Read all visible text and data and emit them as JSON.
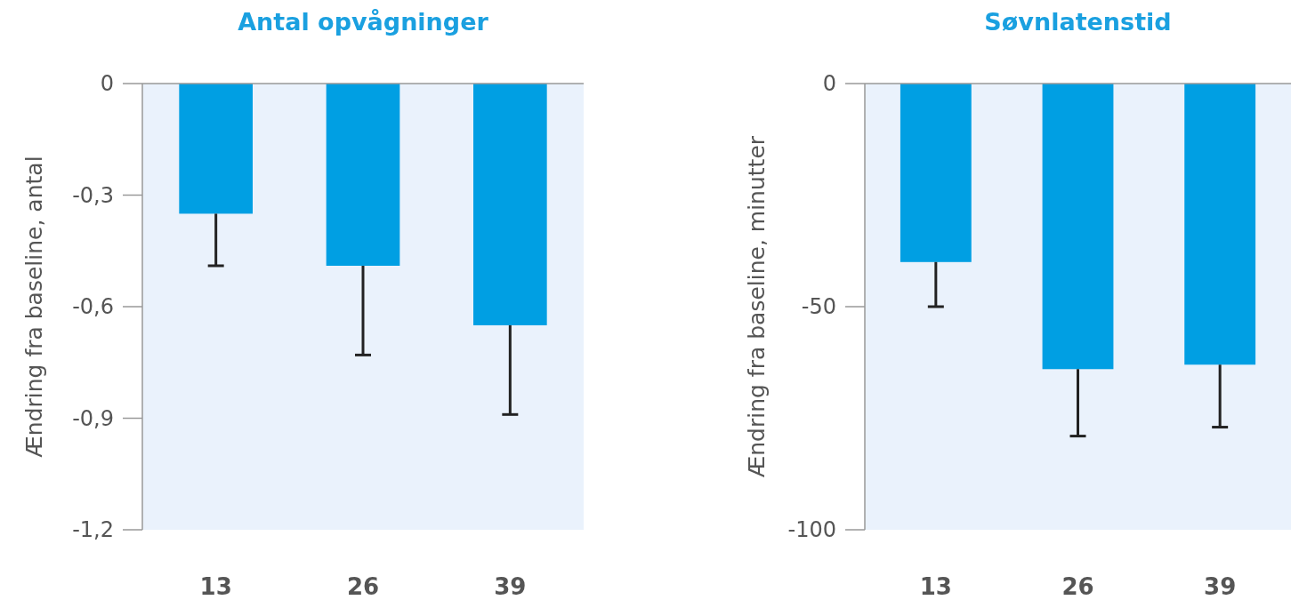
{
  "chart_data": [
    {
      "type": "bar",
      "title": "Antal opvågninger",
      "ylabel": "Ændring fra baseline, antal",
      "categories": [
        "13",
        "26",
        "39"
      ],
      "values": [
        -0.35,
        -0.49,
        -0.65
      ],
      "errors": [
        [
          -0.49,
          -0.35
        ],
        [
          -0.73,
          -0.49
        ],
        [
          -0.89,
          -0.65
        ]
      ],
      "color": "#009fe3",
      "ylim": [
        -1.2,
        0
      ],
      "yticks": [
        {
          "value": 0,
          "label": "0"
        },
        {
          "value": -0.3,
          "label": "-0,3"
        },
        {
          "value": -0.6,
          "label": "-0,6"
        },
        {
          "value": -0.9,
          "label": "-0,9"
        },
        {
          "value": -1.2,
          "label": "-1,2"
        }
      ],
      "grid": false
    },
    {
      "type": "bar",
      "title": "Søvnlatenstid",
      "ylabel": "Ændring fra baseline, minutter",
      "categories": [
        "13",
        "26",
        "39"
      ],
      "values": [
        -40,
        -64,
        -63
      ],
      "errors": [
        [
          -50,
          -40
        ],
        [
          -79,
          -64
        ],
        [
          -77,
          -63
        ]
      ],
      "color": "#009fe3",
      "ylim": [
        -100,
        0
      ],
      "yticks": [
        0,
        -50,
        -100
      ],
      "grid": false
    }
  ]
}
